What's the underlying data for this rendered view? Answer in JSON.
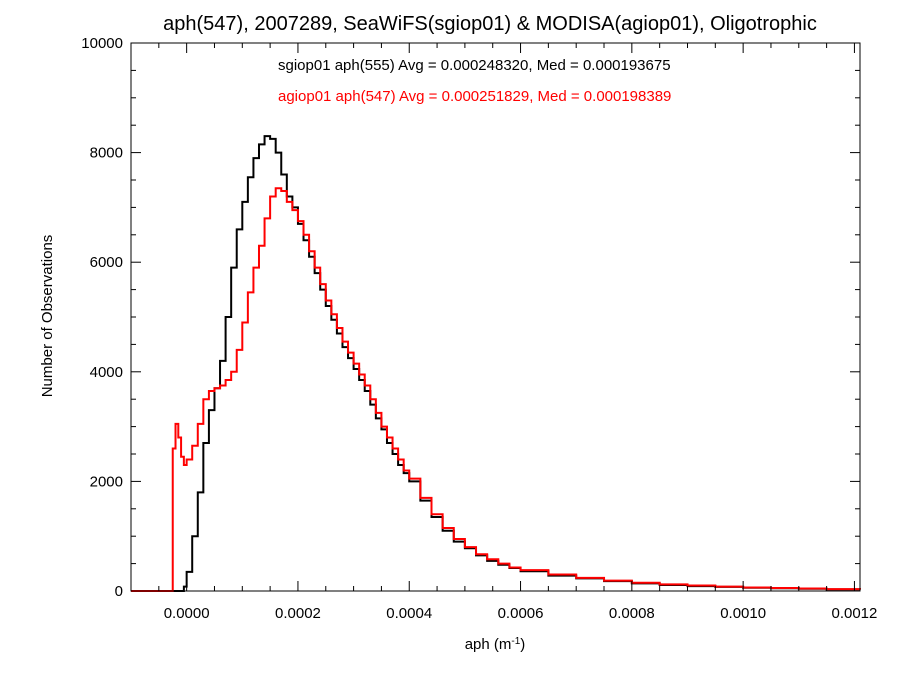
{
  "chart_data": {
    "type": "line",
    "style": "step histogram",
    "title": "aph(547), 2007289, SeaWiFS(sgiop01) & MODISA(agiop01), Oligotrophic",
    "xlabel_main": "aph (m",
    "xlabel_sup": "-1",
    "xlabel_close": ")",
    "ylabel": "Number of Observations",
    "xlim": [
      -0.0001,
      0.00121
    ],
    "ylim": [
      0,
      10000
    ],
    "xticks": [
      0.0,
      0.0002,
      0.0004,
      0.0006,
      0.0008,
      0.001,
      0.0012
    ],
    "xtick_labels": [
      "0.0000",
      "0.0002",
      "0.0004",
      "0.0006",
      "0.0008",
      "0.0010",
      "0.0012"
    ],
    "yticks": [
      0,
      2000,
      4000,
      6000,
      8000,
      10000
    ],
    "ytick_labels": [
      "0",
      "2000",
      "4000",
      "6000",
      "8000",
      "10000"
    ],
    "grid": false,
    "legend_placement": "top",
    "series": [
      {
        "name": "sgiop01",
        "legend_label": "sgiop01 aph(555) Avg = 0.000248320, Med = 0.000193675",
        "color": "#000000",
        "points": [
          [
            -0.0001,
            0
          ],
          [
            -2e-05,
            0
          ],
          [
            -1e-05,
            0
          ],
          [
            -5e-06,
            80
          ],
          [
            0.0,
            350
          ],
          [
            1e-05,
            1000
          ],
          [
            2e-05,
            1800
          ],
          [
            3e-05,
            2700
          ],
          [
            4e-05,
            3300
          ],
          [
            5e-05,
            3700
          ],
          [
            6e-05,
            4200
          ],
          [
            7e-05,
            5000
          ],
          [
            8e-05,
            5900
          ],
          [
            9e-05,
            6600
          ],
          [
            0.0001,
            7100
          ],
          [
            0.00011,
            7550
          ],
          [
            0.00012,
            7900
          ],
          [
            0.00013,
            8150
          ],
          [
            0.00014,
            8300
          ],
          [
            0.00015,
            8250
          ],
          [
            0.00016,
            8000
          ],
          [
            0.00017,
            7600
          ],
          [
            0.00018,
            7200
          ],
          [
            0.00019,
            7000
          ],
          [
            0.0002,
            6700
          ],
          [
            0.00021,
            6400
          ],
          [
            0.00022,
            6100
          ],
          [
            0.00023,
            5800
          ],
          [
            0.00024,
            5500
          ],
          [
            0.00025,
            5200
          ],
          [
            0.00026,
            4950
          ],
          [
            0.00027,
            4700
          ],
          [
            0.00028,
            4450
          ],
          [
            0.00029,
            4250
          ],
          [
            0.0003,
            4050
          ],
          [
            0.00031,
            3850
          ],
          [
            0.00032,
            3650
          ],
          [
            0.00033,
            3400
          ],
          [
            0.00034,
            3150
          ],
          [
            0.00035,
            2950
          ],
          [
            0.00036,
            2700
          ],
          [
            0.00037,
            2500
          ],
          [
            0.00038,
            2300
          ],
          [
            0.00039,
            2150
          ],
          [
            0.0004,
            2000
          ],
          [
            0.00042,
            1650
          ],
          [
            0.00044,
            1350
          ],
          [
            0.00046,
            1100
          ],
          [
            0.00048,
            900
          ],
          [
            0.0005,
            780
          ],
          [
            0.00052,
            650
          ],
          [
            0.00054,
            550
          ],
          [
            0.00056,
            480
          ],
          [
            0.00058,
            420
          ],
          [
            0.0006,
            360
          ],
          [
            0.00065,
            280
          ],
          [
            0.0007,
            230
          ],
          [
            0.00075,
            180
          ],
          [
            0.0008,
            140
          ],
          [
            0.00085,
            110
          ],
          [
            0.0009,
            90
          ],
          [
            0.00095,
            75
          ],
          [
            0.001,
            60
          ],
          [
            0.00105,
            50
          ],
          [
            0.0011,
            40
          ],
          [
            0.00115,
            30
          ],
          [
            0.00121,
            25
          ]
        ]
      },
      {
        "name": "agiop01",
        "legend_label": "agiop01 aph(547) Avg = 0.000251829, Med = 0.000198389",
        "color": "#ff0000",
        "points": [
          [
            -0.0001,
            0
          ],
          [
            -3e-05,
            0
          ],
          [
            -2.5e-05,
            2600
          ],
          [
            -2e-05,
            3050
          ],
          [
            -1.5e-05,
            2800
          ],
          [
            -1e-05,
            2450
          ],
          [
            -5e-06,
            2300
          ],
          [
            0.0,
            2400
          ],
          [
            1e-05,
            2650
          ],
          [
            2e-05,
            3050
          ],
          [
            3e-05,
            3500
          ],
          [
            4e-05,
            3650
          ],
          [
            5e-05,
            3700
          ],
          [
            6e-05,
            3750
          ],
          [
            7e-05,
            3850
          ],
          [
            8e-05,
            4000
          ],
          [
            9e-05,
            4400
          ],
          [
            0.0001,
            4900
          ],
          [
            0.00011,
            5450
          ],
          [
            0.00012,
            5900
          ],
          [
            0.00013,
            6300
          ],
          [
            0.00014,
            6800
          ],
          [
            0.00015,
            7200
          ],
          [
            0.00016,
            7350
          ],
          [
            0.00017,
            7300
          ],
          [
            0.00018,
            7100
          ],
          [
            0.00019,
            6950
          ],
          [
            0.0002,
            6750
          ],
          [
            0.00021,
            6500
          ],
          [
            0.00022,
            6200
          ],
          [
            0.00023,
            5900
          ],
          [
            0.00024,
            5600
          ],
          [
            0.00025,
            5300
          ],
          [
            0.00026,
            5050
          ],
          [
            0.00027,
            4800
          ],
          [
            0.00028,
            4550
          ],
          [
            0.00029,
            4350
          ],
          [
            0.0003,
            4150
          ],
          [
            0.00031,
            3950
          ],
          [
            0.00032,
            3750
          ],
          [
            0.00033,
            3500
          ],
          [
            0.00034,
            3250
          ],
          [
            0.00035,
            3000
          ],
          [
            0.00036,
            2800
          ],
          [
            0.00037,
            2600
          ],
          [
            0.00038,
            2400
          ],
          [
            0.00039,
            2200
          ],
          [
            0.0004,
            2050
          ],
          [
            0.00042,
            1700
          ],
          [
            0.00044,
            1400
          ],
          [
            0.00046,
            1150
          ],
          [
            0.00048,
            950
          ],
          [
            0.0005,
            800
          ],
          [
            0.00052,
            670
          ],
          [
            0.00054,
            580
          ],
          [
            0.00056,
            500
          ],
          [
            0.00058,
            430
          ],
          [
            0.0006,
            380
          ],
          [
            0.00065,
            300
          ],
          [
            0.0007,
            240
          ],
          [
            0.00075,
            190
          ],
          [
            0.0008,
            150
          ],
          [
            0.00085,
            120
          ],
          [
            0.0009,
            100
          ],
          [
            0.00095,
            80
          ],
          [
            0.001,
            65
          ],
          [
            0.00105,
            55
          ],
          [
            0.0011,
            45
          ],
          [
            0.00115,
            35
          ],
          [
            0.00121,
            28
          ]
        ]
      }
    ]
  }
}
